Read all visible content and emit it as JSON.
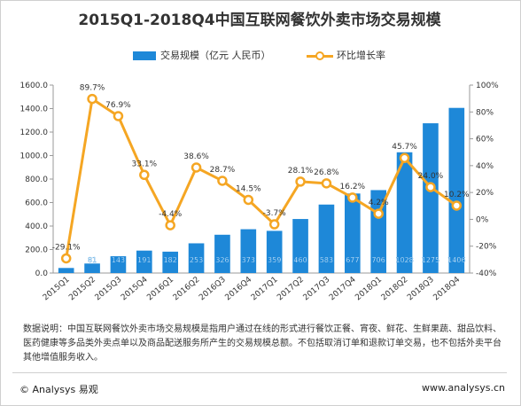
{
  "title": "2015Q1-2018Q4中国互联网餐饮外卖市场交易规模",
  "legend": {
    "bar_label": "交易规模（亿元 人民币）",
    "line_label": "环比增长率"
  },
  "colors": {
    "bar": "#1e88d8",
    "line": "#f5a623",
    "axis_text": "#333333",
    "grid": "#e6e6e6"
  },
  "chart_data": {
    "type": "bar+line",
    "categories": [
      "2015Q1",
      "2015Q2",
      "2015Q3",
      "2015Q4",
      "2016Q1",
      "2016Q2",
      "2016Q3",
      "2016Q4",
      "2017Q1",
      "2017Q2",
      "2017Q3",
      "2017Q4",
      "2018Q1",
      "2018Q2",
      "2018Q3",
      "2018Q4"
    ],
    "series": [
      {
        "name": "交易规模（亿元 人民币）",
        "type": "bar",
        "axis": "left",
        "values": [
          43,
          81,
          143,
          191,
          182,
          253,
          326,
          373,
          359,
          460,
          583,
          677,
          706,
          1028,
          1275,
          1406
        ],
        "labels": [
          "43",
          "81",
          "143",
          "191",
          "182",
          "253",
          "326",
          "373",
          "359",
          "460",
          "583",
          "677",
          "706",
          "1028",
          "1275",
          "1406"
        ]
      },
      {
        "name": "环比增长率",
        "type": "line",
        "axis": "right",
        "values": [
          -29.1,
          89.7,
          76.9,
          33.1,
          -4.4,
          38.6,
          28.7,
          14.5,
          -3.7,
          28.1,
          26.8,
          16.2,
          4.2,
          45.7,
          24.0,
          10.2
        ],
        "labels": [
          "-29.1%",
          "89.7%",
          "76.9%",
          "33.1%",
          "-4.4%",
          "38.6%",
          "28.7%",
          "14.5%",
          "-3.7%",
          "28.1%",
          "26.8%",
          "16.2%",
          "4.2%",
          "45.7%",
          "24.0%",
          "10.2%"
        ]
      }
    ],
    "y_left": {
      "min": 0,
      "max": 1600,
      "ticks": [
        "0.0",
        "200.0",
        "400.0",
        "600.0",
        "800.0",
        "1000.0",
        "1200.0",
        "1400.0",
        "1600.0"
      ]
    },
    "y_right": {
      "min": -40,
      "max": 100,
      "ticks": [
        "-40%",
        "-20%",
        "0%",
        "20%",
        "40%",
        "60%",
        "80%",
        "100%"
      ]
    },
    "grid": false,
    "legend_position": "top"
  },
  "footnote": "数据说明：中国互联网餐饮外卖市场交易规模是指用户通过在线的形式进行餐饮正餐、宵夜、鲜花、生鲜果蔬、甜品饮料、医药健康等多品类外卖点单以及商品配送服务所产生的交易规模总额。不包括取消订单和退款订单交易，也不包括外卖平台其他增值服务收入。",
  "brand": "© Analysys 易观",
  "site": "www.analysys.cn"
}
